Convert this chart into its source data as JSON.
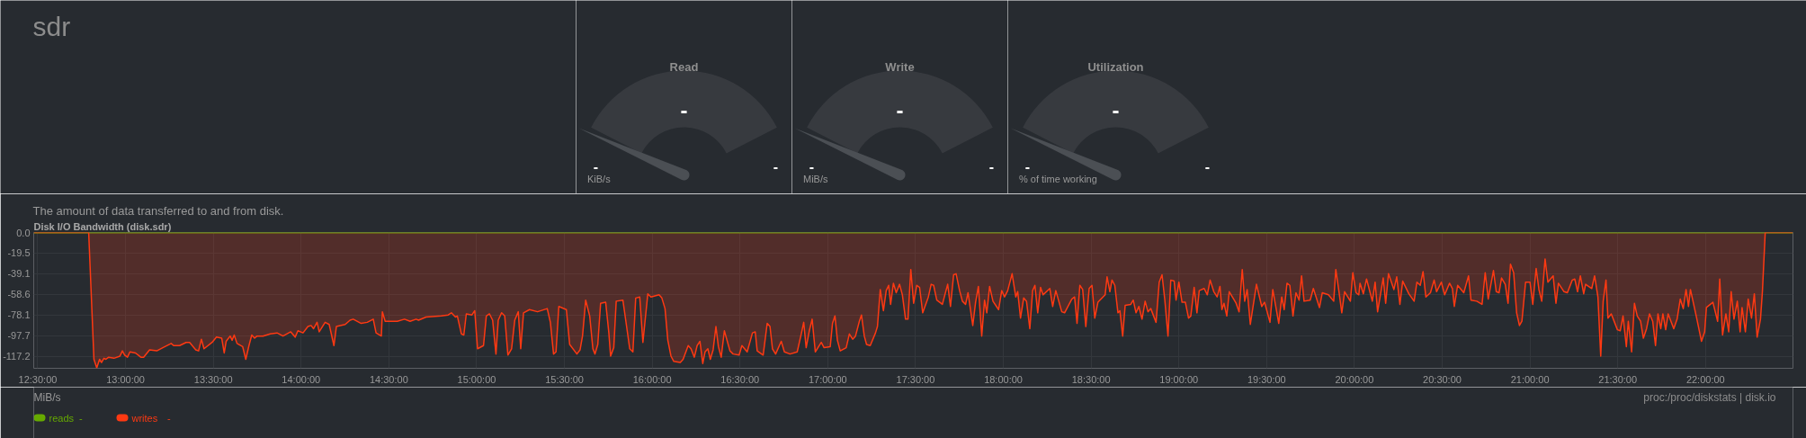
{
  "chart_data": [
    {
      "type": "other",
      "title": "sdr"
    },
    {
      "type": "other",
      "title": "Read",
      "annotations": [
        "-",
        "-",
        "-",
        "KiB/s"
      ]
    },
    {
      "type": "other",
      "title": "Write",
      "annotations": [
        "-",
        "-",
        "-",
        "MiB/s"
      ]
    },
    {
      "type": "other",
      "title": "Utilization",
      "annotations": [
        "-",
        "-",
        "-",
        "% of time working"
      ]
    },
    {
      "type": "area",
      "title": "Disk I/O Bandwidth (disk.sdr)",
      "subtitle": "The amount of data transferred to and from disk.",
      "annotations": [
        "MiB/s",
        "proc:/proc/diskstats | disk.io",
        "-",
        "-"
      ],
      "xlim": [
        12.477,
        22.498
      ],
      "xticks": [
        {
          "value": 12.5,
          "label": "12:30:00"
        },
        {
          "value": 13,
          "label": "13:00:00"
        },
        {
          "value": 13.5,
          "label": "13:30:00"
        },
        {
          "value": 14,
          "label": "14:00:00"
        },
        {
          "value": 14.5,
          "label": "14:30:00"
        },
        {
          "value": 15,
          "label": "15:00:00"
        },
        {
          "value": 15.5,
          "label": "15:30:00"
        },
        {
          "value": 16,
          "label": "16:00:00"
        },
        {
          "value": 16.5,
          "label": "16:30:00"
        },
        {
          "value": 17,
          "label": "17:00:00"
        },
        {
          "value": 17.5,
          "label": "17:30:00"
        },
        {
          "value": 18,
          "label": "18:00:00"
        },
        {
          "value": 18.5,
          "label": "18:30:00"
        },
        {
          "value": 19,
          "label": "19:00:00"
        },
        {
          "value": 19.5,
          "label": "19:30:00"
        },
        {
          "value": 20,
          "label": "20:00:00"
        },
        {
          "value": 20.5,
          "label": "20:30:00"
        },
        {
          "value": 21,
          "label": "21:00:00"
        },
        {
          "value": 21.5,
          "label": "21:30:00"
        },
        {
          "value": 22,
          "label": "22:00:00"
        }
      ],
      "ylim": [
        -128.5,
        0
      ],
      "yticks": [
        {
          "value": 0,
          "label": "0.0"
        },
        -19.5,
        -39.1,
        -58.6,
        -78.1,
        -97.7,
        -117.2
      ],
      "grid": true,
      "legend": "bottom left",
      "series": [
        {
          "name": "reads",
          "type": "line",
          "color": "#66aa00",
          "x": [
            12.477,
            22.498
          ],
          "values": [
            0,
            0
          ]
        },
        {
          "name": "writes",
          "color": "#fe3912",
          "x": [
            12.477,
            12.79,
            12.82,
            12.836,
            12.852,
            12.863,
            12.877,
            12.888,
            12.904,
            12.934,
            12.968,
            12.982,
            12.995,
            13.011,
            13.025,
            13.057,
            13.087,
            13.103,
            13.137,
            13.178,
            13.212,
            13.26,
            13.274,
            13.308,
            13.345,
            13.365,
            13.4,
            13.416,
            13.432,
            13.447,
            13.493,
            13.518,
            13.548,
            13.562,
            13.573,
            13.596,
            13.607,
            13.619,
            13.635,
            13.667,
            13.685,
            13.703,
            13.719,
            13.735,
            13.749,
            13.783,
            13.824,
            13.863,
            13.897,
            13.941,
            13.966,
            13.982,
            14.011,
            14.039,
            14.057,
            14.071,
            14.091,
            14.103,
            14.137,
            14.16,
            14.187,
            14.201,
            14.251,
            14.279,
            14.297,
            14.342,
            14.377,
            14.411,
            14.427,
            14.457,
            14.463,
            14.479,
            14.548,
            14.589,
            14.621,
            14.655,
            14.669,
            14.712,
            14.799,
            14.838,
            14.856,
            14.879,
            14.89,
            14.913,
            14.927,
            14.941,
            14.973,
            14.989,
            15.005,
            15.039,
            15.055,
            15.073,
            15.091,
            15.11,
            15.123,
            15.142,
            15.16,
            15.178,
            15.199,
            15.217,
            15.237,
            15.251,
            15.267,
            15.301,
            15.347,
            15.402,
            15.42,
            15.438,
            15.452,
            15.468,
            15.511,
            15.53,
            15.571,
            15.589,
            15.603,
            15.621,
            15.644,
            15.662,
            15.674,
            15.69,
            15.706,
            15.735,
            15.753,
            15.763,
            15.781,
            15.795,
            15.833,
            15.872,
            15.89,
            15.906,
            15.929,
            15.947,
            15.975,
            15.993,
            16.039,
            16.055,
            16.073,
            16.089,
            16.107,
            16.123,
            16.16,
            16.176,
            16.205,
            16.221,
            16.24,
            16.256,
            16.272,
            16.288,
            16.301,
            16.317,
            16.331,
            16.347,
            16.363,
            16.377,
            16.393,
            16.411,
            16.443,
            16.461,
            16.495,
            16.511,
            16.541,
            16.571,
            16.587,
            16.598,
            16.632,
            16.655,
            16.671,
            16.685,
            16.703,
            16.735,
            16.753,
            16.785,
            16.826,
            16.849,
            16.863,
            16.877,
            16.895,
            16.911,
            16.929,
            16.963,
            16.979,
            17.014,
            17.027,
            17.041,
            17.055,
            17.071,
            17.105,
            17.123,
            17.142,
            17.158,
            17.18,
            17.192,
            17.208,
            17.221,
            17.242,
            17.272,
            17.283,
            17.299,
            17.317,
            17.333,
            17.347,
            17.358,
            17.374,
            17.39,
            17.409,
            17.425,
            17.443,
            17.457,
            17.473,
            17.489,
            17.507,
            17.523,
            17.541,
            17.573,
            17.589,
            17.603,
            17.621,
            17.653,
            17.667,
            17.683,
            17.699,
            17.717,
            17.731,
            17.751,
            17.767,
            17.785,
            17.799,
            17.826,
            17.842,
            17.858,
            17.877,
            17.893,
            17.906,
            17.922,
            17.941,
            17.973,
            17.991,
            18.007,
            18.025,
            18.05,
            18.071,
            18.082,
            18.098,
            18.116,
            18.132,
            18.151,
            18.167,
            18.18,
            18.196,
            18.212,
            18.226,
            18.265,
            18.281,
            18.299,
            18.333,
            18.349,
            18.39,
            18.406,
            18.42,
            18.436,
            18.452,
            18.47,
            18.489,
            18.505,
            18.521,
            18.539,
            18.58,
            18.591,
            18.607,
            18.619,
            18.635,
            18.653,
            18.664,
            18.68,
            18.694,
            18.726,
            18.74,
            18.756,
            18.772,
            18.79,
            18.808,
            18.824,
            18.84,
            18.87,
            18.888,
            18.904,
            18.92,
            18.938,
            18.954,
            18.973,
            18.984,
            19.0,
            19.018,
            19.037,
            19.055,
            19.068,
            19.087,
            19.103,
            19.116,
            19.144,
            19.162,
            19.178,
            19.199,
            19.218,
            19.234,
            19.245,
            19.257,
            19.273,
            19.287,
            19.326,
            19.343,
            19.361,
            19.375,
            19.389,
            19.407,
            19.442,
            19.472,
            19.488,
            19.519,
            19.535,
            19.569,
            19.586,
            19.6,
            19.616,
            19.632,
            19.65,
            19.667,
            19.685,
            19.699,
            19.713,
            19.748,
            19.766,
            19.801,
            19.817,
            19.852,
            19.882,
            19.894,
            19.912,
            19.928,
            19.944,
            19.977,
            19.991,
            20.009,
            20.025,
            20.032,
            20.051,
            20.069,
            20.102,
            20.118,
            20.132,
            20.164,
            20.178,
            20.194,
            20.225,
            20.241,
            20.259,
            20.275,
            20.31,
            20.34,
            20.356,
            20.375,
            20.391,
            20.407,
            20.433,
            20.454,
            20.468,
            20.495,
            20.514,
            20.542,
            20.558,
            20.569,
            20.588,
            20.623,
            20.65,
            20.664,
            20.697,
            20.727,
            20.745,
            20.762,
            20.792,
            20.808,
            20.824,
            20.838,
            20.859,
            20.875,
            20.889,
            20.907,
            20.924,
            20.94,
            20.954,
            20.975,
            21.0,
            21.016,
            21.035,
            21.051,
            21.067,
            21.086,
            21.102,
            21.132,
            21.148,
            21.162,
            21.194,
            21.213,
            21.241,
            21.255,
            21.271,
            21.287,
            21.306,
            21.317,
            21.352,
            21.368,
            21.387,
            21.403,
            21.417,
            21.433,
            21.444,
            21.463,
            21.498,
            21.514,
            21.53,
            21.549,
            21.56,
            21.579,
            21.595,
            21.611,
            21.63,
            21.646,
            21.664,
            21.681,
            21.699,
            21.715,
            21.729,
            21.745,
            21.757,
            21.773,
            21.787,
            21.819,
            21.838,
            21.856,
            21.873,
            21.889,
            21.903,
            21.914,
            21.947,
            21.977,
            21.995,
            22.005,
            22.042,
            22.069,
            22.081,
            22.097,
            22.116,
            22.132,
            22.146,
            22.162,
            22.181,
            22.197,
            22.208,
            22.227,
            22.243,
            22.262,
            22.278,
            22.294,
            22.313,
            22.324,
            22.34,
            22.498
          ],
          "values": [
            0,
            0,
            -120,
            -128,
            -120,
            -123,
            -119,
            -120,
            -118,
            -119,
            -117,
            -112,
            -116,
            -118,
            -113,
            -114,
            -118,
            -118,
            -111,
            -112,
            -109,
            -105,
            -107,
            -107,
            -104,
            -104,
            -111,
            -112,
            -101,
            -110,
            -104,
            -99,
            -100,
            -114,
            -103,
            -98,
            -102,
            -97,
            -105,
            -108,
            -120,
            -107,
            -97,
            -100,
            -98,
            -98,
            -96,
            -95,
            -98,
            -94,
            -99,
            -93,
            -95,
            -89,
            -88,
            -91,
            -85,
            -94,
            -85,
            -87,
            -107,
            -89,
            -87,
            -83,
            -82,
            -86,
            -85,
            -82,
            -95,
            -98,
            -75,
            -84,
            -84,
            -82,
            -84,
            -82,
            -83,
            -80,
            -79,
            -78,
            -76,
            -80,
            -79,
            -96,
            -97,
            -77,
            -78,
            -74,
            -110,
            -107,
            -79,
            -77,
            -83,
            -115,
            -83,
            -76,
            -79,
            -116,
            -110,
            -83,
            -75,
            -110,
            -76,
            -73,
            -75,
            -72,
            -85,
            -115,
            -113,
            -70,
            -73,
            -106,
            -115,
            -111,
            -98,
            -64,
            -79,
            -110,
            -115,
            -106,
            -67,
            -66,
            -95,
            -117,
            -109,
            -65,
            -64,
            -110,
            -113,
            -62,
            -61,
            -104,
            -58,
            -61,
            -59,
            -62,
            -72,
            -102,
            -117,
            -122,
            -123,
            -120,
            -107,
            -110,
            -118,
            -107,
            -103,
            -124,
            -113,
            -110,
            -120,
            -111,
            -89,
            -108,
            -118,
            -93,
            -112,
            -115,
            -116,
            -107,
            -113,
            -95,
            -94,
            -112,
            -116,
            -86,
            -89,
            -110,
            -115,
            -103,
            -113,
            -115,
            -113,
            -96,
            -85,
            -109,
            -93,
            -82,
            -113,
            -104,
            -109,
            -108,
            -86,
            -79,
            -102,
            -112,
            -109,
            -96,
            -101,
            -98,
            -84,
            -78,
            -98,
            -106,
            -107,
            -95,
            -89,
            -54,
            -74,
            -55,
            -50,
            -68,
            -48,
            -57,
            -49,
            -59,
            -82,
            -82,
            -35,
            -67,
            -50,
            -52,
            -76,
            -61,
            -49,
            -50,
            -64,
            -68,
            -59,
            -49,
            -70,
            -40,
            -39,
            -55,
            -65,
            -68,
            -57,
            -88,
            -66,
            -51,
            -98,
            -64,
            -76,
            -51,
            -65,
            -73,
            -55,
            -61,
            -55,
            -39,
            -61,
            -56,
            -81,
            -62,
            -65,
            -91,
            -55,
            -50,
            -76,
            -52,
            -59,
            -53,
            -70,
            -55,
            -75,
            -76,
            -63,
            -61,
            -86,
            -50,
            -54,
            -89,
            -53,
            -50,
            -81,
            -66,
            -59,
            -42,
            -56,
            -45,
            -50,
            -76,
            -74,
            -98,
            -69,
            -68,
            -64,
            -76,
            -70,
            -82,
            -65,
            -75,
            -72,
            -85,
            -47,
            -40,
            -64,
            -98,
            -45,
            -46,
            -64,
            -47,
            -66,
            -66,
            -81,
            -79,
            -52,
            -76,
            -55,
            -53,
            -59,
            -45,
            -56,
            -61,
            -51,
            -73,
            -67,
            -79,
            -56,
            -67,
            -75,
            -35,
            -65,
            -54,
            -87,
            -49,
            -70,
            -66,
            -85,
            -54,
            -86,
            -61,
            -73,
            -48,
            -50,
            -79,
            -57,
            -64,
            -41,
            -65,
            -64,
            -53,
            -71,
            -57,
            -59,
            -65,
            -35,
            -56,
            -76,
            -56,
            -65,
            -38,
            -57,
            -59,
            -48,
            -58,
            -44,
            -65,
            -47,
            -75,
            -43,
            -67,
            -39,
            -54,
            -42,
            -68,
            -46,
            -58,
            -65,
            -47,
            -50,
            -37,
            -61,
            -57,
            -45,
            -56,
            -47,
            -59,
            -48,
            -53,
            -70,
            -50,
            -57,
            -41,
            -64,
            -65,
            -68,
            -38,
            -63,
            -36,
            -56,
            -57,
            -43,
            -49,
            -67,
            -30,
            -38,
            -76,
            -88,
            -84,
            -47,
            -47,
            -68,
            -34,
            -54,
            -65,
            -25,
            -47,
            -41,
            -67,
            -48,
            -56,
            -57,
            -45,
            -44,
            -56,
            -41,
            -58,
            -49,
            -53,
            -41,
            -61,
            -117,
            -65,
            -45,
            -81,
            -77,
            -92,
            -93,
            -79,
            -108,
            -84,
            -113,
            -67,
            -79,
            -84,
            -100,
            -91,
            -77,
            -84,
            -107,
            -77,
            -91,
            -77,
            -92,
            -77,
            -91,
            -82,
            -63,
            -72,
            -54,
            -70,
            -54,
            -79,
            -103,
            -94,
            -71,
            -66,
            -84,
            -44,
            -97,
            -77,
            -94,
            -56,
            -82,
            -65,
            -94,
            -71,
            -94,
            -63,
            -81,
            -58,
            -99,
            -82,
            -56,
            0,
            0
          ]
        }
      ]
    }
  ]
}
